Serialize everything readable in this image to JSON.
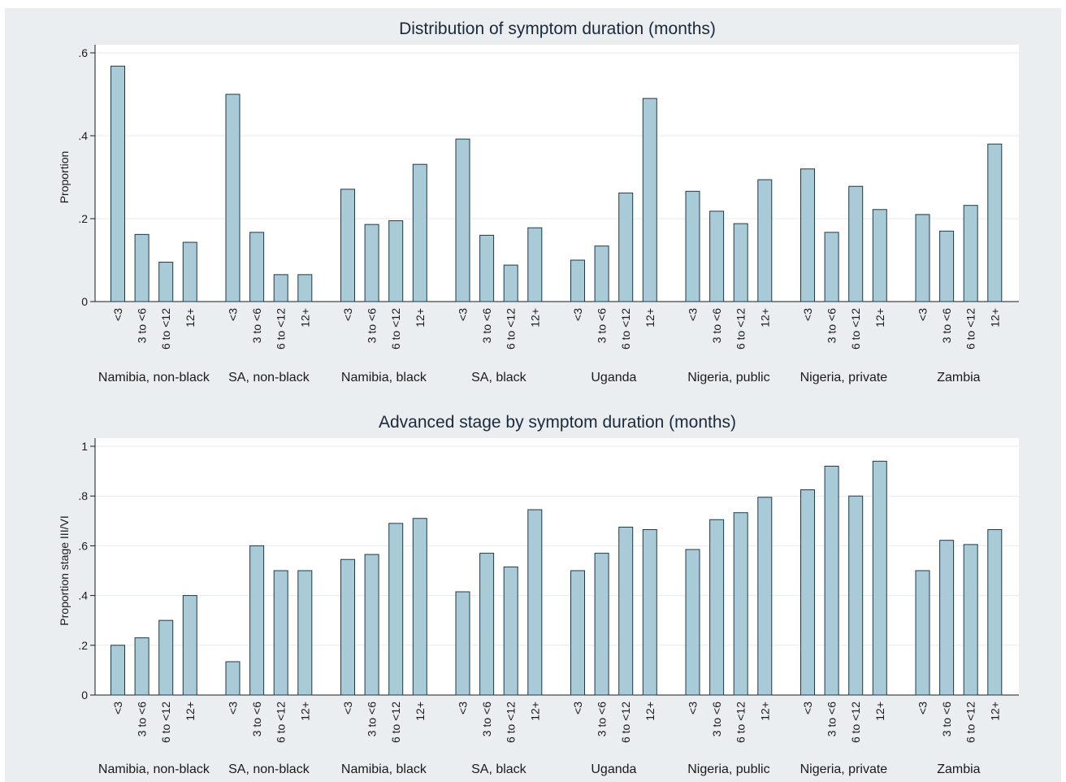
{
  "chart_data": [
    {
      "type": "bar",
      "title": "Distribution of symptom duration (months)",
      "ylabel": "Proportion",
      "xlabel": "",
      "ylim": [
        0,
        0.6
      ],
      "yticks": [
        0,
        0.2,
        0.4,
        0.6
      ],
      "ytick_labels": [
        "0",
        ".2",
        ".4",
        ".6"
      ],
      "grid": true,
      "bar_color": "#a9cbd8",
      "bar_edge_color": "#1e3a4a",
      "categories": [
        "<3",
        "3 to <6",
        "6 to <12",
        "12+"
      ],
      "groups": [
        "Namibia, non-black",
        "SA, non-black",
        "Namibia, black",
        "SA, black",
        "Uganda",
        "Nigeria, public",
        "Nigeria, private",
        "Zambia"
      ],
      "values": [
        [
          0.568,
          0.162,
          0.095,
          0.143
        ],
        [
          0.5,
          0.167,
          0.065,
          0.065
        ],
        [
          0.271,
          0.186,
          0.195,
          0.331
        ],
        [
          0.392,
          0.16,
          0.088,
          0.178
        ],
        [
          0.1,
          0.134,
          0.262,
          0.49
        ],
        [
          0.266,
          0.218,
          0.188,
          0.294
        ],
        [
          0.32,
          0.167,
          0.278,
          0.222
        ],
        [
          0.21,
          0.17,
          0.232,
          0.38
        ]
      ]
    },
    {
      "type": "bar",
      "title": "Advanced stage by symptom duration (months)",
      "ylabel": "Proportion stage III/VI",
      "xlabel": "",
      "ylim": [
        0,
        1
      ],
      "yticks": [
        0,
        0.2,
        0.4,
        0.6,
        0.8,
        1
      ],
      "ytick_labels": [
        "0",
        ".2",
        ".4",
        ".6",
        ".8",
        "1"
      ],
      "grid": true,
      "bar_color": "#a9cbd8",
      "bar_edge_color": "#1e3a4a",
      "categories": [
        "<3",
        "3 to <6",
        "6 to <12",
        "12+"
      ],
      "groups": [
        "Namibia, non-black",
        "SA, non-black",
        "Namibia, black",
        "SA, black",
        "Uganda",
        "Nigeria, public",
        "Nigeria, private",
        "Zambia"
      ],
      "values": [
        [
          0.2,
          0.23,
          0.3,
          0.4
        ],
        [
          0.134,
          0.6,
          0.5,
          0.5
        ],
        [
          0.545,
          0.565,
          0.69,
          0.71
        ],
        [
          0.415,
          0.57,
          0.515,
          0.745
        ],
        [
          0.5,
          0.57,
          0.675,
          0.665
        ],
        [
          0.585,
          0.705,
          0.733,
          0.795
        ],
        [
          0.825,
          0.92,
          0.8,
          0.94
        ],
        [
          0.5,
          0.622,
          0.605,
          0.665
        ]
      ]
    }
  ]
}
